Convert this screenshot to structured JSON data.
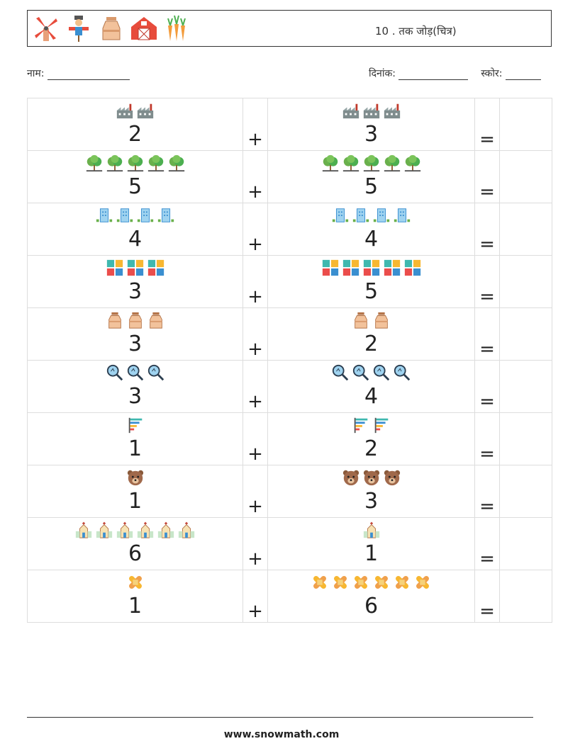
{
  "header": {
    "icons": [
      "windmill-icon",
      "scarecrow-icon",
      "milk-jug-icon",
      "barn-icon",
      "carrots-icon"
    ],
    "title": "10 . तक जोड़(चित्र)"
  },
  "meta": {
    "name_label": "नाम:",
    "date_label": "दिनांक:",
    "score_label": "स्कोर:"
  },
  "operators": {
    "plus": "+",
    "equals": "="
  },
  "rows": [
    {
      "left": {
        "icon": "factory-icon",
        "count": 2,
        "number": "2"
      },
      "right": {
        "icon": "factory-icon",
        "count": 3,
        "number": "3"
      }
    },
    {
      "left": {
        "icon": "tree-icon",
        "count": 5,
        "number": "5"
      },
      "right": {
        "icon": "tree-icon",
        "count": 5,
        "number": "5"
      }
    },
    {
      "left": {
        "icon": "building-icon",
        "count": 4,
        "number": "4"
      },
      "right": {
        "icon": "building-icon",
        "count": 4,
        "number": "4"
      }
    },
    {
      "left": {
        "icon": "puzzle-icon",
        "count": 3,
        "number": "3"
      },
      "right": {
        "icon": "puzzle-icon",
        "count": 5,
        "number": "5"
      }
    },
    {
      "left": {
        "icon": "milk-can-icon",
        "count": 3,
        "number": "3"
      },
      "right": {
        "icon": "milk-can-icon",
        "count": 2,
        "number": "2"
      }
    },
    {
      "left": {
        "icon": "magnifier-icon",
        "count": 3,
        "number": "3"
      },
      "right": {
        "icon": "magnifier-icon",
        "count": 4,
        "number": "4"
      }
    },
    {
      "left": {
        "icon": "bar-chart-icon",
        "count": 1,
        "number": "1"
      },
      "right": {
        "icon": "bar-chart-icon",
        "count": 2,
        "number": "2"
      }
    },
    {
      "left": {
        "icon": "bear-icon",
        "count": 1,
        "number": "1"
      },
      "right": {
        "icon": "bear-icon",
        "count": 3,
        "number": "3"
      }
    },
    {
      "left": {
        "icon": "church-icon",
        "count": 6,
        "number": "6"
      },
      "right": {
        "icon": "church-icon",
        "count": 1,
        "number": "1"
      }
    },
    {
      "left": {
        "icon": "bandage-icon",
        "count": 1,
        "number": "1"
      },
      "right": {
        "icon": "bandage-icon",
        "count": 6,
        "number": "6"
      }
    }
  ],
  "footer": {
    "site": "www.snowmath.com"
  }
}
